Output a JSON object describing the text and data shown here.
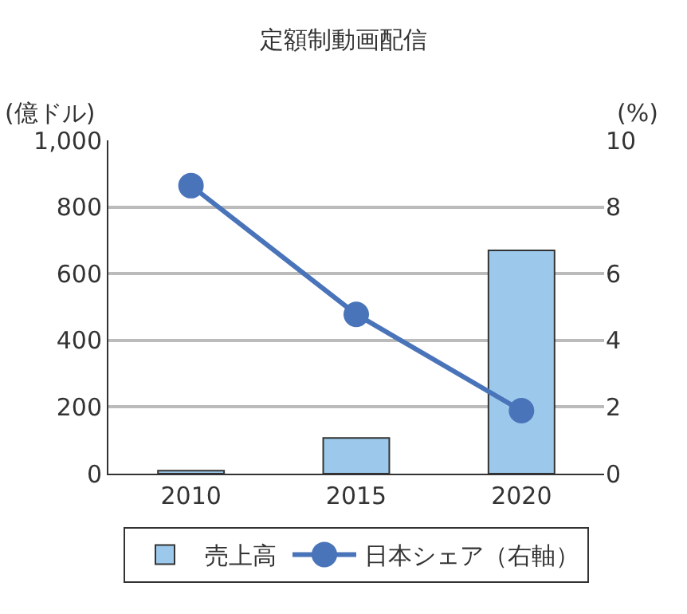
{
  "chart_data": {
    "type": "bar",
    "title": "定額制動画配信",
    "ylabel": "(億ドル)",
    "y2label": "(%)",
    "categories": [
      "2010",
      "2015",
      "2020"
    ],
    "series": [
      {
        "name": "売上高",
        "color": "#9cc9eb",
        "values": [
          9,
          107,
          670
        ]
      },
      {
        "name": "日本シェア（右軸）",
        "type": "line",
        "axis": "y2",
        "color": "#4a74b9",
        "marker": "circle",
        "values": [
          8.64,
          4.78,
          1.89
        ]
      }
    ],
    "ylim": [
      0,
      1000
    ],
    "yticks": [
      0,
      200,
      400,
      600,
      800,
      {
        "value": 1000,
        "label": "1,000"
      }
    ],
    "y2lim": [
      0,
      10
    ],
    "y2ticks": [
      0,
      2,
      4,
      6,
      8,
      10
    ],
    "grid": "y",
    "legend": "bottom"
  }
}
